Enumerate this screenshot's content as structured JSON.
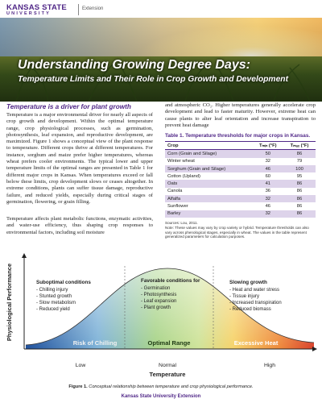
{
  "header": {
    "logo_line1": "KANSAS STATE",
    "logo_line2": "UNIVERSITY",
    "unit": "Extension"
  },
  "hero": {
    "title": "Understanding Growing Degree Days:",
    "subtitle": "Temperature Limits and Their Role in Crop Growth and Development"
  },
  "left_column": {
    "heading": "Temperature is a driver for plant growth",
    "paragraphs": [
      "Temperature is a major environmental driver for nearly all aspects of crop growth and development. Within the optimal temperature range, crop physiological processes, such as germination, photosynthesis, leaf expansion, and reproductive development, are maximized. Figure 1 shows a conceptual view of the plant response to temperature. Different crops thrive at different temperatures. For instance, sorghum and maize prefer higher temperatures, whereas wheat prefers cooler environments. The typical lower and upper temperature limits of the optimal ranges are presented in Table 1 for different major crops in Kansas. When temperatures exceed or fall below these limits, crop development slows or ceases altogether. In extreme conditions, plants can suffer tissue damage, reproductive failure, and reduced yields, especially during critical stages of germination, flowering, or grain filling.",
      "Temperature affects plant metabolic functions, enzymatic activities, and water-use efficiency, thus shaping crop responses to environmental factors, including soil moisture"
    ]
  },
  "right_column": {
    "paragraph": "and atmospheric CO₂. Higher temperatures generally accelerate crop development and lead to faster maturity. However, extreme heat can cause plants to alter leaf orientation and increase transpiration to prevent heat damage"
  },
  "table": {
    "caption": "Table 1. Temperature thresholds for major crops in Kansas.",
    "headers": [
      "Crop",
      "Tₘᵢₙ (°F)",
      "Tₘₐₓ (°F)"
    ],
    "rows": [
      [
        "Corn (Grain and Silage)",
        50,
        86
      ],
      [
        "Winter wheat",
        32,
        79
      ],
      [
        "Sorghum (Grain and Silage)",
        46,
        100
      ],
      [
        "Cotton (Upland)",
        60,
        95
      ],
      [
        "Oats",
        41,
        86
      ],
      [
        "Canola",
        36,
        86
      ],
      [
        "Alfalfa",
        32,
        86
      ],
      [
        "Sunflower",
        46,
        86
      ],
      [
        "Barley",
        32,
        86
      ]
    ],
    "sources": "Sources: Lou, 2011.",
    "note": "Note: These values may vary by crop variety or hybrid. Temperature thresholds can also vary across phenological stages, especially in wheat. The values in the table represent generalized parameters for calculation purposes."
  },
  "figure": {
    "y_label": "Physiological Performance",
    "x_label": "Temperature",
    "x_ticks": [
      "Low",
      "Normal",
      "High"
    ],
    "panels": [
      {
        "title": "Suboptimal conditions",
        "items": [
          "- Chilling injury",
          "- Stunted growth",
          "- Slow metabolism",
          "- Reduced yield"
        ]
      },
      {
        "title": "Favorable conditions for",
        "items": [
          "- Germination",
          "- Photosynthesis",
          "- Leaf expansion",
          "- Plant growth"
        ]
      },
      {
        "title": "Slowing growth",
        "items": [
          "- Heat and water stress",
          "- Tissue injury",
          "- Increased transpiration",
          "- Reduced biomass"
        ]
      }
    ],
    "zones": [
      "Risk of Chilling",
      "Optimal Range",
      "Excessive Heat"
    ],
    "caption_label": "Figure 1.",
    "caption_text": "Conceptual relationship between temperature and crop physiological performance."
  },
  "footer": "Kansas State University Extension"
}
